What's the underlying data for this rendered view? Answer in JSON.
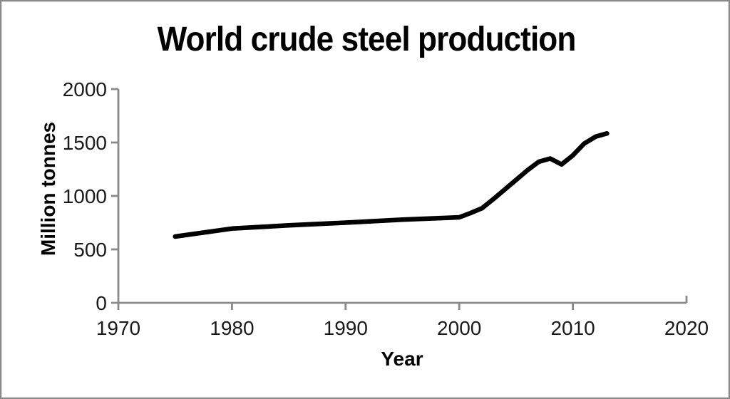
{
  "window": {
    "background": "#ffffff",
    "border_color": "#8a8a8a"
  },
  "chart_data": {
    "type": "line",
    "title": "World crude steel production",
    "xlabel": "Year",
    "ylabel": "Million tonnes",
    "xlim": [
      1970,
      2020
    ],
    "ylim": [
      0,
      2000
    ],
    "x_ticks": [
      1970,
      1980,
      1990,
      2000,
      2010,
      2020
    ],
    "y_ticks": [
      0,
      500,
      1000,
      1500,
      2000
    ],
    "grid": false,
    "legend_position": "none",
    "line_color": "#000000",
    "axis_color": "#8a8a8a",
    "tick_label_color": "#1a1a1a",
    "series": [
      {
        "name": "World crude steel production",
        "x": [
          1975,
          1980,
          1985,
          1990,
          1995,
          2000,
          2001,
          2002,
          2003,
          2004,
          2005,
          2006,
          2007,
          2008,
          2009,
          2010,
          2011,
          2012,
          2013
        ],
        "y": [
          620,
          695,
          725,
          750,
          778,
          800,
          840,
          885,
          970,
          1060,
          1150,
          1240,
          1320,
          1350,
          1295,
          1380,
          1490,
          1555,
          1585
        ]
      }
    ]
  }
}
